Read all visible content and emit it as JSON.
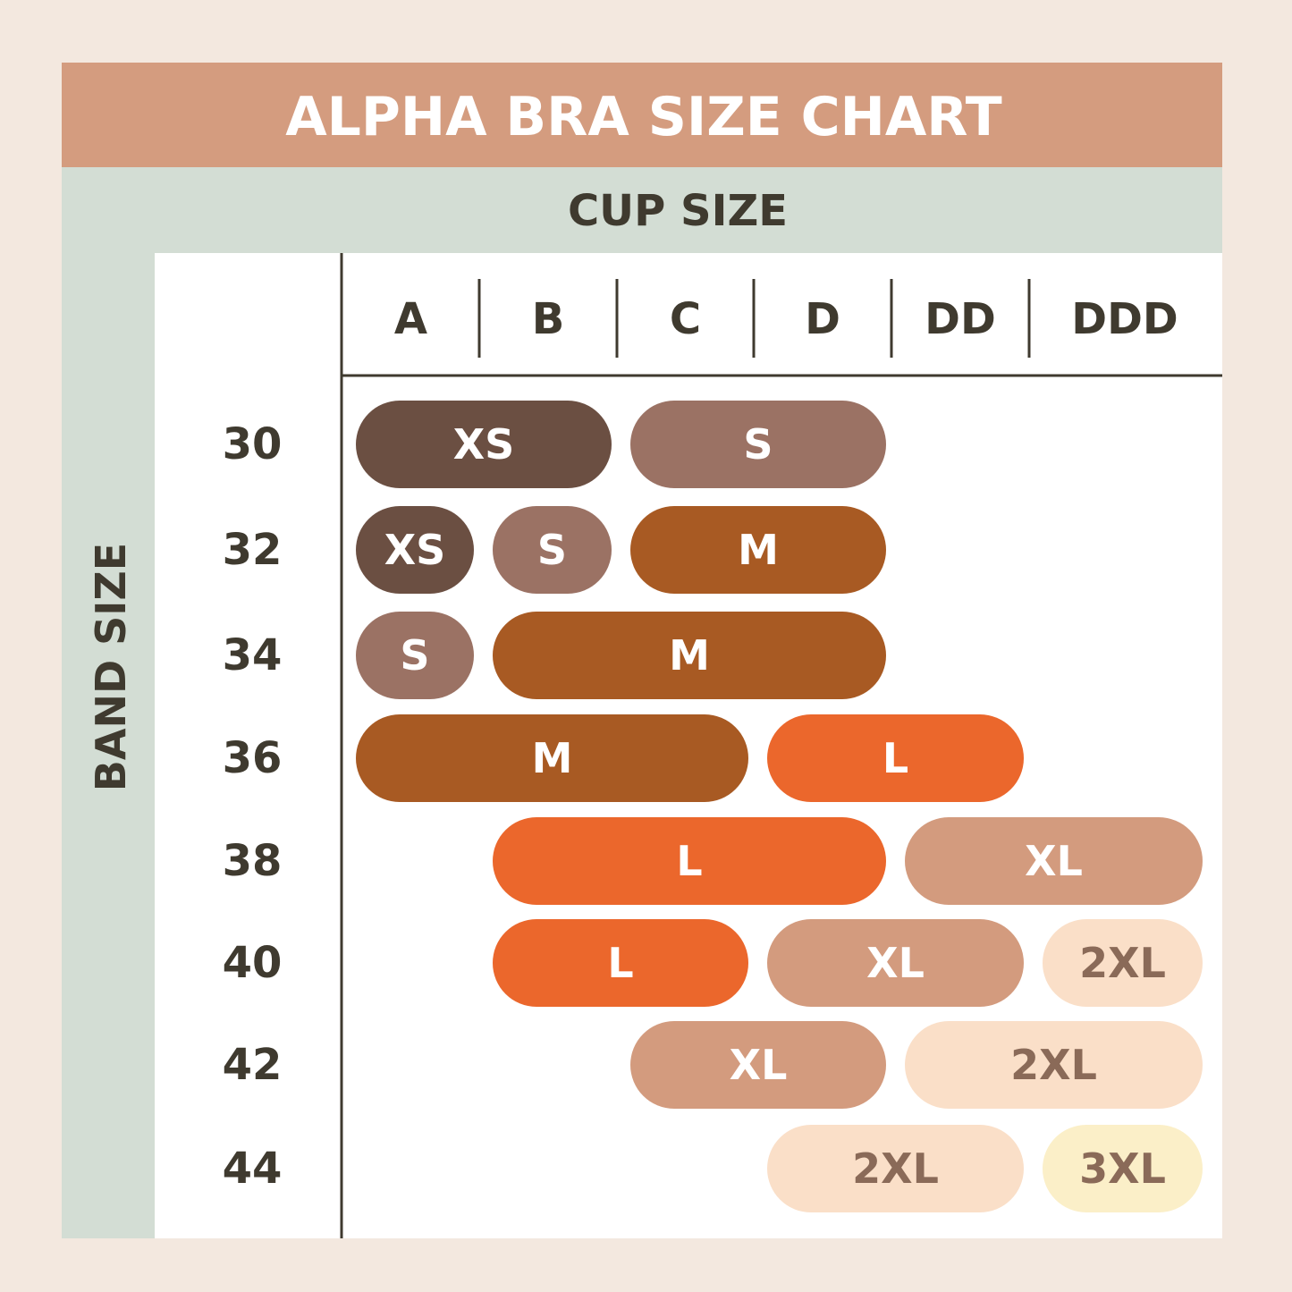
{
  "header": {
    "title": "ALPHA BRA SIZE CHART",
    "column_heading": "CUP SIZE",
    "row_heading": "BAND SIZE"
  },
  "cups": [
    "A",
    "B",
    "C",
    "D",
    "DD",
    "DDD"
  ],
  "rows": [
    {
      "band": "30",
      "sizes": [
        "XS",
        "S"
      ]
    },
    {
      "band": "32",
      "sizes": [
        "XS",
        "S",
        "M"
      ]
    },
    {
      "band": "34",
      "sizes": [
        "S",
        "M"
      ]
    },
    {
      "band": "36",
      "sizes": [
        "M",
        "L"
      ]
    },
    {
      "band": "38",
      "sizes": [
        "L",
        "XL"
      ]
    },
    {
      "band": "40",
      "sizes": [
        "L",
        "XL",
        "2XL"
      ]
    },
    {
      "band": "42",
      "sizes": [
        "XL",
        "2XL"
      ]
    },
    {
      "band": "44",
      "sizes": [
        "2XL",
        "3XL"
      ]
    }
  ]
}
